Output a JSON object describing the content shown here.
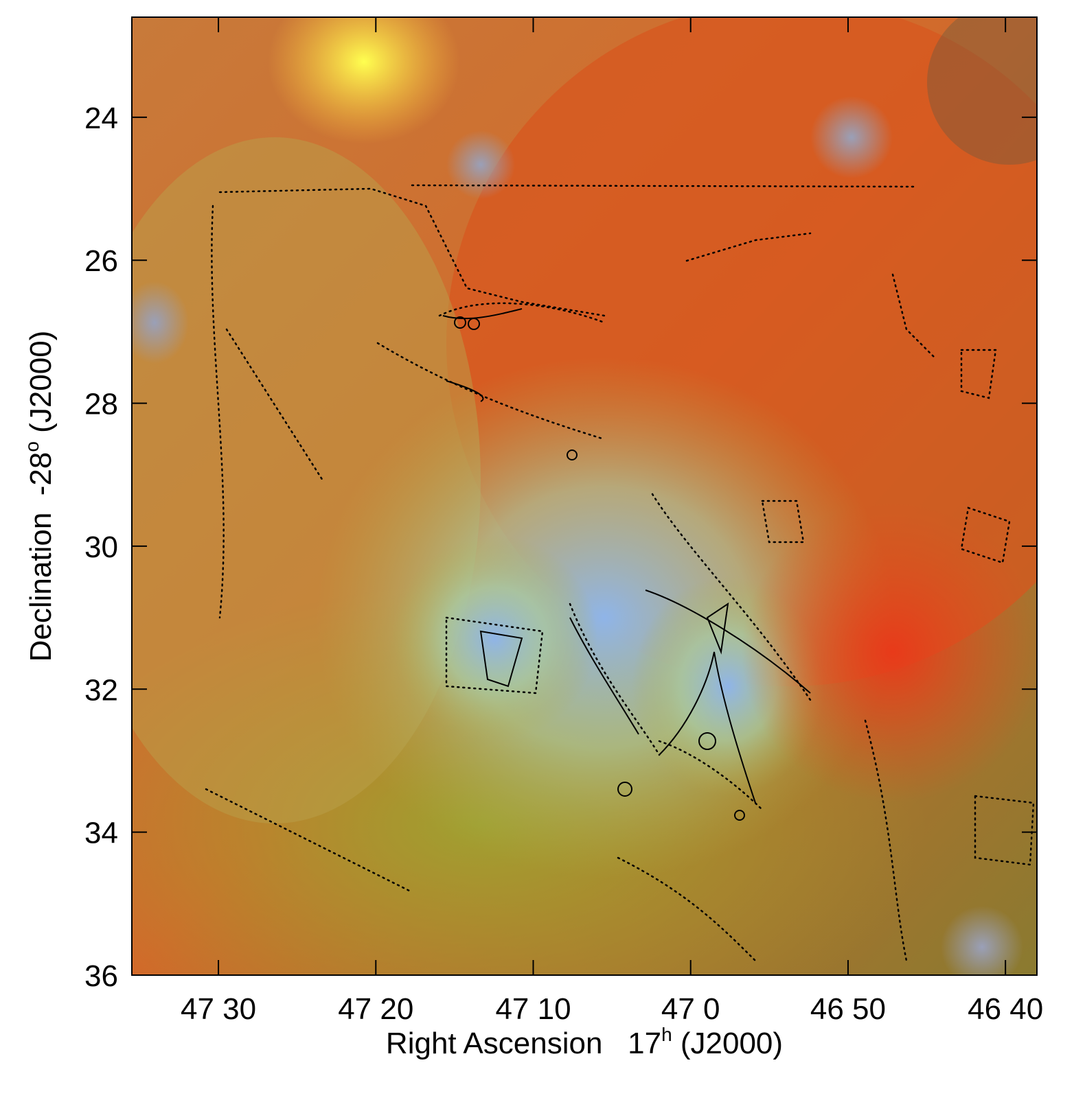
{
  "chart_data": {
    "type": "image",
    "x_label": "Right Ascension   17",
    "x_label_sup": "h",
    "x_label_end": " (J2000)",
    "y_label": "Declination  -28",
    "y_label_sup": "o",
    "y_label_end": " (J2000)",
    "xlim": [
      2855.5,
      2798
    ],
    "xticks": [
      {
        "value": 2850,
        "label": "47 30"
      },
      {
        "value": 2840,
        "label": "47 20"
      },
      {
        "value": 2830,
        "label": "47 10"
      },
      {
        "value": 2820,
        "label": "47 0"
      },
      {
        "value": 2810,
        "label": "46 50"
      },
      {
        "value": 2800,
        "label": "46 40"
      }
    ],
    "ylim": [
      22.6,
      36
    ],
    "yticks": [
      24,
      26,
      28,
      30,
      32,
      34,
      36
    ]
  }
}
